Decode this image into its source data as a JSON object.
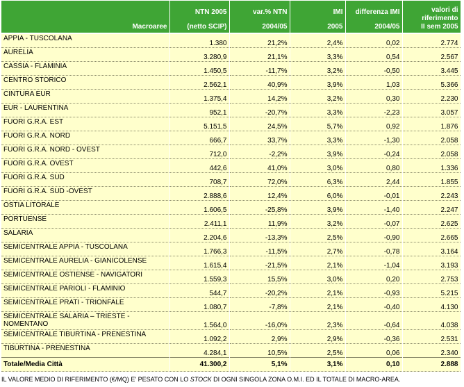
{
  "table": {
    "headers": [
      {
        "top": "",
        "bottom": "Macroaree"
      },
      {
        "top": "NTN 2005",
        "bottom": "(netto SCIP)"
      },
      {
        "top": "var.% NTN",
        "bottom": "2004/05"
      },
      {
        "top": "IMI",
        "bottom": "2005"
      },
      {
        "top": "differenza IMI",
        "bottom": "2004/05"
      },
      {
        "top": "valori di riferimento",
        "bottom": "II sem 2005"
      }
    ],
    "rows": [
      [
        "APPIA - TUSCOLANA",
        "1.380",
        "21,2%",
        "2,4%",
        "0,02",
        "2.774"
      ],
      [
        "AURELIA",
        "3.280,9",
        "21,1%",
        "3,3%",
        "0,54",
        "2.567"
      ],
      [
        "CASSIA - FLAMINIA",
        "1.450,5",
        "-11,7%",
        "3,2%",
        "-0,50",
        "3.445"
      ],
      [
        "CENTRO STORICO",
        "2.562,1",
        "40,9%",
        "3,9%",
        "1,03",
        "5.366"
      ],
      [
        "CINTURA EUR",
        "1.375,4",
        "14,2%",
        "3,2%",
        "0,30",
        "2.230"
      ],
      [
        "EUR - LAURENTINA",
        "952,1",
        "-20,7%",
        "3,3%",
        "-2,23",
        "3.057"
      ],
      [
        "FUORI G.R.A. EST",
        "5.151,5",
        "24,5%",
        "5,7%",
        "0,92",
        "1.876"
      ],
      [
        "FUORI G.R.A. NORD",
        "666,7",
        "33,7%",
        "3,3%",
        "-1,30",
        "2.058"
      ],
      [
        "FUORI G.R.A. NORD - OVEST",
        "712,0",
        "-2,2%",
        "3,9%",
        "-0,24",
        "2.058"
      ],
      [
        "FUORI G.R.A. OVEST",
        "442,6",
        "41,0%",
        "3,0%",
        "0,80",
        "1.336"
      ],
      [
        "FUORI G.R.A. SUD",
        "708,7",
        "72,0%",
        "6,3%",
        "2,44",
        "1.855"
      ],
      [
        "FUORI G.R.A. SUD -OVEST",
        "2.888,6",
        "12,4%",
        "6,0%",
        "-0,01",
        "2.243"
      ],
      [
        "OSTIA LITORALE",
        "1.606,5",
        "-25,8%",
        "3,9%",
        "-1,40",
        "2.247"
      ],
      [
        "PORTUENSE",
        "2.411,1",
        "11,9%",
        "3,2%",
        "-0,07",
        "2.625"
      ],
      [
        "SALARIA",
        "2.204,6",
        "-13,3%",
        "2,5%",
        "-0,90",
        "2.665"
      ],
      [
        "SEMICENTRALE APPIA - TUSCOLANA",
        "1.766,3",
        "-11,5%",
        "2,7%",
        "-0,78",
        "3.164"
      ],
      [
        "SEMICENTRALE AURELIA - GIANICOLENSE",
        "1.615,4",
        "-21,5%",
        "2,1%",
        "-1,04",
        "3.193"
      ],
      [
        "SEMICENTRALE OSTIENSE -  NAVIGATORI",
        "1.559,3",
        "15,5%",
        "3,0%",
        "0,20",
        "2.753"
      ],
      [
        "SEMICENTRALE PARIOLI - FLAMINIO",
        "544,7",
        "-20,2%",
        "2,1%",
        "-0,93",
        "5.215"
      ],
      [
        "SEMICENTRALE PRATI - TRIONFALE",
        "1.080,7",
        "-7,8%",
        "2,1%",
        "-0,40",
        "4.130"
      ],
      [
        "SEMICENTRALE SALARIA – TRIESTE - NOMENTANO",
        "1.564,0",
        "-16,0%",
        "2,3%",
        "-0,64",
        "4.038"
      ],
      [
        "SEMICENTRALE TIBURTINA - PRENESTINA",
        "1.092,2",
        "2,9%",
        "2,9%",
        "-0,36",
        "2.531"
      ],
      [
        "TIBURTINA - PRENESTINA",
        "4.284,1",
        "10,5%",
        "2,5%",
        "0,06",
        "2.340"
      ]
    ],
    "total": [
      "Totale/Media Città",
      "41.300,2",
      "5,1%",
      "3,1%",
      "0,10",
      "2.888"
    ]
  },
  "note": {
    "before": "IL VALORE MEDIO DI RIFERIMENTO (€/MQ) E' PESATO CON LO ",
    "italic": "STOCK",
    "after": " DI OGNI SINGOLA ZONA O.M.I. ED IL TOTALE DI MACRO-AREA."
  },
  "colors": {
    "header_bg": "#3fa535",
    "row_bg": "#ffffcc"
  }
}
